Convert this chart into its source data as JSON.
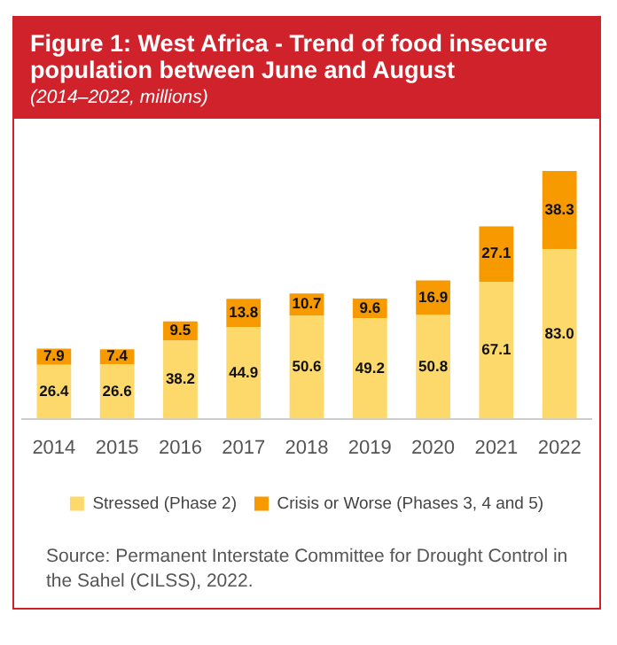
{
  "chart_data": {
    "type": "bar",
    "title": "Figure 1: West Africa - Trend of food insecure population between June and August",
    "subtitle": "(2014–2022, millions)",
    "categories": [
      "2014",
      "2015",
      "2016",
      "2017",
      "2018",
      "2019",
      "2020",
      "2021",
      "2022"
    ],
    "stacked": true,
    "legend": "bottom",
    "grid": false,
    "series": [
      {
        "name": "Stressed (Phase 2)",
        "color": "#fdd96b",
        "values": [
          26.4,
          26.6,
          38.2,
          44.9,
          50.6,
          49.2,
          50.8,
          67.1,
          83.0
        ],
        "value_labels": [
          "26.4",
          "26.6",
          "38.2",
          "44.9",
          "50.6",
          "49.2",
          "50.8",
          "67.1",
          "83.0"
        ]
      },
      {
        "name": "Crisis or Worse (Phases 3, 4 and 5)",
        "color": "#f79a00",
        "values": [
          7.9,
          7.4,
          9.5,
          13.8,
          10.7,
          9.6,
          16.9,
          27.1,
          38.3
        ],
        "value_labels": [
          "7.9",
          "7.4",
          "9.5",
          "13.8",
          "10.7",
          "9.6",
          "16.9",
          "27.1",
          "38.3"
        ]
      }
    ],
    "annotations": [
      "Source: Permanent Interstate Committee for Drought Control in the Sahel (CILSS), 2022."
    ]
  }
}
